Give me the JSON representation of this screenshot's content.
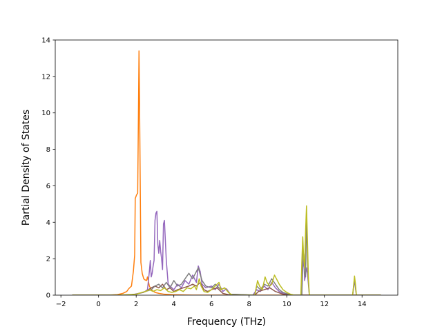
{
  "chart_data": {
    "type": "line",
    "title": "",
    "xlabel": "Frequency (THz)",
    "ylabel": "Partial Density of States",
    "xlim": [
      -2.3,
      15.9
    ],
    "ylim": [
      0,
      14
    ],
    "xticks": [
      -2,
      0,
      2,
      4,
      6,
      8,
      10,
      12,
      14
    ],
    "yticks": [
      0,
      2,
      4,
      6,
      8,
      10,
      12,
      14
    ],
    "grid": false,
    "legend": "none",
    "colors": [
      "#1f77b4",
      "#ff7f0e",
      "#2ca02c",
      "#d62728",
      "#9467bd",
      "#8c564b",
      "#e377c2",
      "#7f7f7f",
      "#bcbd22"
    ],
    "series": [
      {
        "color": "#ff7f0e",
        "points": [
          [
            -1.4,
            0
          ],
          [
            0,
            0
          ],
          [
            0.5,
            0
          ],
          [
            1.0,
            0.03
          ],
          [
            1.3,
            0.1
          ],
          [
            1.5,
            0.2
          ],
          [
            1.6,
            0.35
          ],
          [
            1.75,
            0.5
          ],
          [
            1.85,
            1.3
          ],
          [
            1.92,
            2.2
          ],
          [
            1.95,
            5.3
          ],
          [
            2.02,
            5.5
          ],
          [
            2.08,
            5.6
          ],
          [
            2.12,
            10.0
          ],
          [
            2.15,
            13.4
          ],
          [
            2.18,
            10.5
          ],
          [
            2.22,
            5.5
          ],
          [
            2.25,
            1.8
          ],
          [
            2.32,
            1.2
          ],
          [
            2.4,
            0.9
          ],
          [
            2.45,
            0.85
          ],
          [
            2.55,
            0.8
          ],
          [
            2.6,
            1.0
          ],
          [
            2.7,
            0.5
          ],
          [
            2.8,
            0.3
          ],
          [
            3.0,
            0.15
          ],
          [
            3.2,
            0.1
          ],
          [
            3.5,
            0.05
          ],
          [
            4.0,
            0.02
          ],
          [
            5.0,
            0
          ],
          [
            15.0,
            0
          ]
        ]
      },
      {
        "color": "#9467bd",
        "points": [
          [
            -1.4,
            0
          ],
          [
            1.0,
            0
          ],
          [
            1.8,
            0.03
          ],
          [
            2.4,
            0.15
          ],
          [
            2.6,
            0.3
          ],
          [
            2.7,
            1.3
          ],
          [
            2.75,
            1.9
          ],
          [
            2.8,
            1.0
          ],
          [
            2.85,
            1.2
          ],
          [
            2.9,
            1.6
          ],
          [
            2.95,
            1.9
          ],
          [
            3.0,
            4.1
          ],
          [
            3.05,
            4.5
          ],
          [
            3.1,
            4.6
          ],
          [
            3.15,
            2.8
          ],
          [
            3.2,
            2.3
          ],
          [
            3.25,
            3.0
          ],
          [
            3.3,
            2.4
          ],
          [
            3.35,
            2.0
          ],
          [
            3.4,
            1.4
          ],
          [
            3.45,
            3.9
          ],
          [
            3.5,
            4.1
          ],
          [
            3.55,
            3.0
          ],
          [
            3.6,
            1.9
          ],
          [
            3.7,
            0.6
          ],
          [
            3.8,
            0.5
          ],
          [
            4.0,
            0.3
          ],
          [
            4.2,
            0.6
          ],
          [
            4.4,
            0.4
          ],
          [
            4.6,
            0.8
          ],
          [
            4.8,
            0.6
          ],
          [
            5.0,
            1.1
          ],
          [
            5.2,
            0.7
          ],
          [
            5.3,
            1.6
          ],
          [
            5.4,
            1.3
          ],
          [
            5.5,
            0.6
          ],
          [
            5.7,
            0.4
          ],
          [
            6.0,
            0.5
          ],
          [
            6.2,
            0.3
          ],
          [
            6.4,
            0.6
          ],
          [
            6.6,
            0.2
          ],
          [
            6.8,
            0.35
          ],
          [
            7.0,
            0.05
          ],
          [
            8.2,
            0
          ],
          [
            8.4,
            0.3
          ],
          [
            8.6,
            0.2
          ],
          [
            8.8,
            0.5
          ],
          [
            9.0,
            0.3
          ],
          [
            9.2,
            0.7
          ],
          [
            9.4,
            0.4
          ],
          [
            9.6,
            0.2
          ],
          [
            9.8,
            0.1
          ],
          [
            10.0,
            0.05
          ],
          [
            10.2,
            0
          ],
          [
            10.8,
            0
          ],
          [
            10.85,
            1.5
          ],
          [
            10.9,
            2.0
          ],
          [
            10.95,
            0.8
          ],
          [
            11.05,
            1.5
          ],
          [
            11.1,
            1.2
          ],
          [
            11.2,
            0
          ],
          [
            13.5,
            0
          ],
          [
            13.6,
            0.8
          ],
          [
            13.7,
            0
          ],
          [
            15.0,
            0
          ]
        ]
      },
      {
        "color": "#8c564b",
        "points": [
          [
            -1.4,
            0
          ],
          [
            1.5,
            0
          ],
          [
            2.0,
            0.05
          ],
          [
            2.5,
            0.2
          ],
          [
            2.8,
            0.4
          ],
          [
            3.0,
            0.5
          ],
          [
            3.2,
            0.4
          ],
          [
            3.4,
            0.6
          ],
          [
            3.6,
            0.3
          ],
          [
            3.8,
            0.4
          ],
          [
            4.0,
            0.2
          ],
          [
            4.2,
            0.3
          ],
          [
            4.5,
            0.4
          ],
          [
            4.8,
            0.5
          ],
          [
            5.0,
            0.6
          ],
          [
            5.2,
            0.5
          ],
          [
            5.4,
            0.7
          ],
          [
            5.6,
            0.3
          ],
          [
            5.8,
            0.2
          ],
          [
            6.0,
            0.3
          ],
          [
            6.3,
            0.4
          ],
          [
            6.6,
            0.1
          ],
          [
            7.0,
            0
          ],
          [
            8.3,
            0
          ],
          [
            8.5,
            0.2
          ],
          [
            8.8,
            0.3
          ],
          [
            9.1,
            0.4
          ],
          [
            9.4,
            0.2
          ],
          [
            9.8,
            0.05
          ],
          [
            10.2,
            0
          ],
          [
            15.0,
            0
          ]
        ]
      },
      {
        "color": "#7f7f7f",
        "points": [
          [
            -1.4,
            0
          ],
          [
            1.5,
            0
          ],
          [
            2.0,
            0.05
          ],
          [
            2.5,
            0.2
          ],
          [
            2.8,
            0.3
          ],
          [
            3.0,
            0.5
          ],
          [
            3.2,
            0.6
          ],
          [
            3.4,
            0.4
          ],
          [
            3.6,
            0.7
          ],
          [
            3.8,
            0.4
          ],
          [
            4.0,
            0.8
          ],
          [
            4.2,
            0.5
          ],
          [
            4.4,
            0.6
          ],
          [
            4.6,
            0.9
          ],
          [
            4.8,
            1.2
          ],
          [
            5.0,
            0.9
          ],
          [
            5.2,
            1.3
          ],
          [
            5.3,
            1.5
          ],
          [
            5.5,
            0.8
          ],
          [
            5.7,
            0.5
          ],
          [
            6.0,
            0.4
          ],
          [
            6.2,
            0.6
          ],
          [
            6.5,
            0.3
          ],
          [
            6.7,
            0.4
          ],
          [
            7.0,
            0.05
          ],
          [
            8.3,
            0
          ],
          [
            8.4,
            0.5
          ],
          [
            8.6,
            0.3
          ],
          [
            8.8,
            0.6
          ],
          [
            9.0,
            0.5
          ],
          [
            9.2,
            0.9
          ],
          [
            9.4,
            0.6
          ],
          [
            9.6,
            0.3
          ],
          [
            9.8,
            0.15
          ],
          [
            10.1,
            0.05
          ],
          [
            10.4,
            0
          ],
          [
            10.8,
            0
          ],
          [
            10.85,
            2.5
          ],
          [
            10.9,
            2.2
          ],
          [
            10.95,
            1.2
          ],
          [
            11.0,
            1.0
          ],
          [
            11.05,
            4.5
          ],
          [
            11.1,
            2.0
          ],
          [
            11.15,
            0.8
          ],
          [
            11.2,
            0
          ],
          [
            13.5,
            0
          ],
          [
            13.6,
            0.9
          ],
          [
            13.7,
            0
          ],
          [
            15.0,
            0
          ]
        ]
      },
      {
        "color": "#bcbd22",
        "points": [
          [
            -1.4,
            0
          ],
          [
            1.0,
            0
          ],
          [
            1.5,
            0.02
          ],
          [
            2.0,
            0.05
          ],
          [
            2.3,
            0.15
          ],
          [
            2.5,
            0.2
          ],
          [
            2.7,
            0.3
          ],
          [
            2.9,
            0.2
          ],
          [
            3.1,
            0.3
          ],
          [
            3.3,
            0.25
          ],
          [
            3.5,
            0.4
          ],
          [
            3.7,
            0.2
          ],
          [
            3.9,
            0.15
          ],
          [
            4.1,
            0.2
          ],
          [
            4.3,
            0.3
          ],
          [
            4.5,
            0.2
          ],
          [
            4.7,
            0.4
          ],
          [
            4.9,
            0.35
          ],
          [
            5.1,
            0.5
          ],
          [
            5.2,
            0.3
          ],
          [
            5.35,
            0.9
          ],
          [
            5.45,
            0.5
          ],
          [
            5.6,
            0.2
          ],
          [
            5.8,
            0.15
          ],
          [
            6.0,
            0.3
          ],
          [
            6.2,
            0.5
          ],
          [
            6.4,
            0.7
          ],
          [
            6.5,
            0.3
          ],
          [
            6.7,
            0.4
          ],
          [
            6.9,
            0.15
          ],
          [
            7.1,
            0
          ],
          [
            8.3,
            0
          ],
          [
            8.45,
            0.8
          ],
          [
            8.55,
            0.5
          ],
          [
            8.7,
            0.3
          ],
          [
            8.85,
            1.0
          ],
          [
            8.95,
            0.7
          ],
          [
            9.1,
            0.5
          ],
          [
            9.2,
            0.6
          ],
          [
            9.35,
            1.1
          ],
          [
            9.45,
            0.9
          ],
          [
            9.6,
            0.6
          ],
          [
            9.8,
            0.3
          ],
          [
            10.0,
            0.15
          ],
          [
            10.2,
            0.05
          ],
          [
            10.4,
            0
          ],
          [
            10.75,
            0
          ],
          [
            10.8,
            1.8
          ],
          [
            10.85,
            3.2
          ],
          [
            10.9,
            2.0
          ],
          [
            10.95,
            1.5
          ],
          [
            11.0,
            3.5
          ],
          [
            11.05,
            4.9
          ],
          [
            11.1,
            3.0
          ],
          [
            11.15,
            1.0
          ],
          [
            11.2,
            0
          ],
          [
            13.5,
            0
          ],
          [
            13.55,
            0.5
          ],
          [
            13.6,
            1.05
          ],
          [
            13.65,
            0.6
          ],
          [
            13.7,
            0
          ],
          [
            15.0,
            0
          ]
        ]
      }
    ]
  }
}
